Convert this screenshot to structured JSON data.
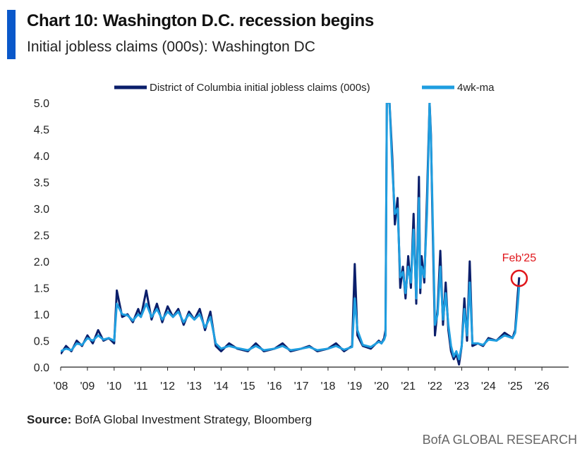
{
  "header": {
    "title": "Chart 10: Washington D.C. recession begins",
    "subtitle": "Initial jobless claims (000s): Washington DC"
  },
  "colors": {
    "accent": "#0a58ca",
    "series_dark": "#0b1f6b",
    "series_light": "#1f9ee0",
    "annotation": "#e0161b"
  },
  "footer": {
    "source_label": "Source:",
    "source_text": " BofA Global Investment Strategy, Bloomberg",
    "brand": "BofA GLOBAL RESEARCH"
  },
  "chart_data": {
    "type": "line",
    "title": "Chart 10: Washington D.C. recession begins",
    "ylabel": "Initial jobless claims (000s)",
    "xlabel": "",
    "ylim": [
      0,
      5
    ],
    "xlim": [
      2008,
      2027
    ],
    "y_ticks": [
      "0.0",
      "0.5",
      "1.0",
      "1.5",
      "2.0",
      "2.5",
      "3.0",
      "3.5",
      "4.0",
      "4.5",
      "5.0"
    ],
    "x_ticks": [
      "'08",
      "'09",
      "'10",
      "'11",
      "'12",
      "'13",
      "'14",
      "'15",
      "'16",
      "'17",
      "'18",
      "'19",
      "'20",
      "'21",
      "'22",
      "'23",
      "'24",
      "'25",
      "'26"
    ],
    "legend": {
      "position": "top-center"
    },
    "annotation": {
      "label": "Feb'25",
      "x": 2025.15,
      "y": 1.68
    },
    "series": [
      {
        "name": "District of Columbia initial jobless claims (000s)",
        "x": [
          2008.0,
          2008.2,
          2008.4,
          2008.6,
          2008.8,
          2009.0,
          2009.2,
          2009.4,
          2009.6,
          2009.8,
          2010.0,
          2010.1,
          2010.3,
          2010.5,
          2010.7,
          2010.9,
          2011.0,
          2011.2,
          2011.4,
          2011.6,
          2011.8,
          2012.0,
          2012.2,
          2012.4,
          2012.6,
          2012.8,
          2013.0,
          2013.2,
          2013.4,
          2013.6,
          2013.8,
          2014.0,
          2014.3,
          2014.6,
          2015.0,
          2015.3,
          2015.6,
          2016.0,
          2016.3,
          2016.6,
          2017.0,
          2017.3,
          2017.6,
          2018.0,
          2018.3,
          2018.6,
          2018.9,
          2019.0,
          2019.1,
          2019.3,
          2019.6,
          2019.9,
          2020.0,
          2020.1,
          2020.15,
          2020.2,
          2020.25,
          2020.3,
          2020.4,
          2020.5,
          2020.6,
          2020.7,
          2020.8,
          2020.9,
          2021.0,
          2021.1,
          2021.2,
          2021.3,
          2021.4,
          2021.45,
          2021.5,
          2021.6,
          2021.7,
          2021.8,
          2021.85,
          2021.9,
          2022.0,
          2022.1,
          2022.2,
          2022.3,
          2022.4,
          2022.5,
          2022.6,
          2022.7,
          2022.8,
          2022.9,
          2023.0,
          2023.1,
          2023.2,
          2023.3,
          2023.4,
          2023.6,
          2023.8,
          2024.0,
          2024.3,
          2024.6,
          2024.9,
          2025.0,
          2025.1,
          2025.15
        ],
        "values": [
          0.25,
          0.4,
          0.3,
          0.5,
          0.4,
          0.6,
          0.45,
          0.7,
          0.5,
          0.55,
          0.45,
          1.45,
          0.95,
          1.0,
          0.85,
          1.1,
          0.95,
          1.45,
          0.9,
          1.2,
          0.85,
          1.15,
          0.95,
          1.1,
          0.8,
          1.05,
          0.9,
          1.1,
          0.7,
          1.05,
          0.4,
          0.3,
          0.45,
          0.35,
          0.3,
          0.45,
          0.3,
          0.35,
          0.45,
          0.3,
          0.35,
          0.4,
          0.3,
          0.35,
          0.45,
          0.3,
          0.4,
          1.95,
          0.6,
          0.4,
          0.35,
          0.5,
          0.45,
          0.55,
          0.7,
          5.0,
          5.0,
          5.0,
          4.0,
          2.7,
          3.2,
          1.5,
          1.9,
          1.3,
          2.1,
          1.5,
          2.9,
          1.2,
          3.6,
          1.4,
          2.1,
          1.6,
          3.2,
          5.0,
          4.4,
          3.0,
          0.6,
          1.1,
          2.2,
          0.8,
          1.6,
          0.7,
          0.3,
          0.15,
          0.25,
          0.05,
          0.4,
          1.3,
          0.5,
          2.0,
          0.4,
          0.45,
          0.4,
          0.55,
          0.5,
          0.65,
          0.55,
          0.7,
          1.4,
          1.7
        ]
      },
      {
        "name": "4wk-ma",
        "x": [
          2008.0,
          2008.2,
          2008.4,
          2008.6,
          2008.8,
          2009.0,
          2009.2,
          2009.4,
          2009.6,
          2009.8,
          2010.0,
          2010.1,
          2010.3,
          2010.5,
          2010.7,
          2010.9,
          2011.0,
          2011.2,
          2011.4,
          2011.6,
          2011.8,
          2012.0,
          2012.2,
          2012.4,
          2012.6,
          2012.8,
          2013.0,
          2013.2,
          2013.4,
          2013.6,
          2013.8,
          2014.0,
          2014.3,
          2014.6,
          2015.0,
          2015.3,
          2015.6,
          2016.0,
          2016.3,
          2016.6,
          2017.0,
          2017.3,
          2017.6,
          2018.0,
          2018.3,
          2018.6,
          2018.9,
          2019.0,
          2019.1,
          2019.3,
          2019.6,
          2019.9,
          2020.0,
          2020.1,
          2020.15,
          2020.2,
          2020.25,
          2020.3,
          2020.4,
          2020.5,
          2020.6,
          2020.7,
          2020.8,
          2020.9,
          2021.0,
          2021.1,
          2021.2,
          2021.3,
          2021.4,
          2021.45,
          2021.5,
          2021.6,
          2021.7,
          2021.8,
          2021.85,
          2021.9,
          2022.0,
          2022.1,
          2022.2,
          2022.3,
          2022.4,
          2022.5,
          2022.6,
          2022.7,
          2022.8,
          2022.9,
          2023.0,
          2023.1,
          2023.2,
          2023.3,
          2023.4,
          2023.6,
          2023.8,
          2024.0,
          2024.3,
          2024.6,
          2024.9,
          2025.0,
          2025.1,
          2025.15
        ],
        "values": [
          0.3,
          0.35,
          0.32,
          0.45,
          0.42,
          0.55,
          0.5,
          0.6,
          0.52,
          0.55,
          0.5,
          1.2,
          1.0,
          0.98,
          0.88,
          1.0,
          0.95,
          1.2,
          0.95,
          1.1,
          0.9,
          1.05,
          0.95,
          1.05,
          0.85,
          1.0,
          0.9,
          1.0,
          0.75,
          0.95,
          0.45,
          0.35,
          0.4,
          0.36,
          0.32,
          0.4,
          0.32,
          0.35,
          0.4,
          0.32,
          0.35,
          0.38,
          0.32,
          0.35,
          0.4,
          0.33,
          0.38,
          1.3,
          0.7,
          0.42,
          0.38,
          0.48,
          0.45,
          0.52,
          0.6,
          5.0,
          5.0,
          5.0,
          3.8,
          2.9,
          3.0,
          1.7,
          1.8,
          1.4,
          1.9,
          1.6,
          2.6,
          1.3,
          3.2,
          1.5,
          1.9,
          1.7,
          2.9,
          5.0,
          4.3,
          3.2,
          0.8,
          1.0,
          1.9,
          0.9,
          1.4,
          0.8,
          0.4,
          0.2,
          0.3,
          0.15,
          0.4,
          1.1,
          0.6,
          1.6,
          0.45,
          0.45,
          0.42,
          0.52,
          0.5,
          0.6,
          0.55,
          0.65,
          1.2,
          1.55
        ]
      }
    ]
  }
}
